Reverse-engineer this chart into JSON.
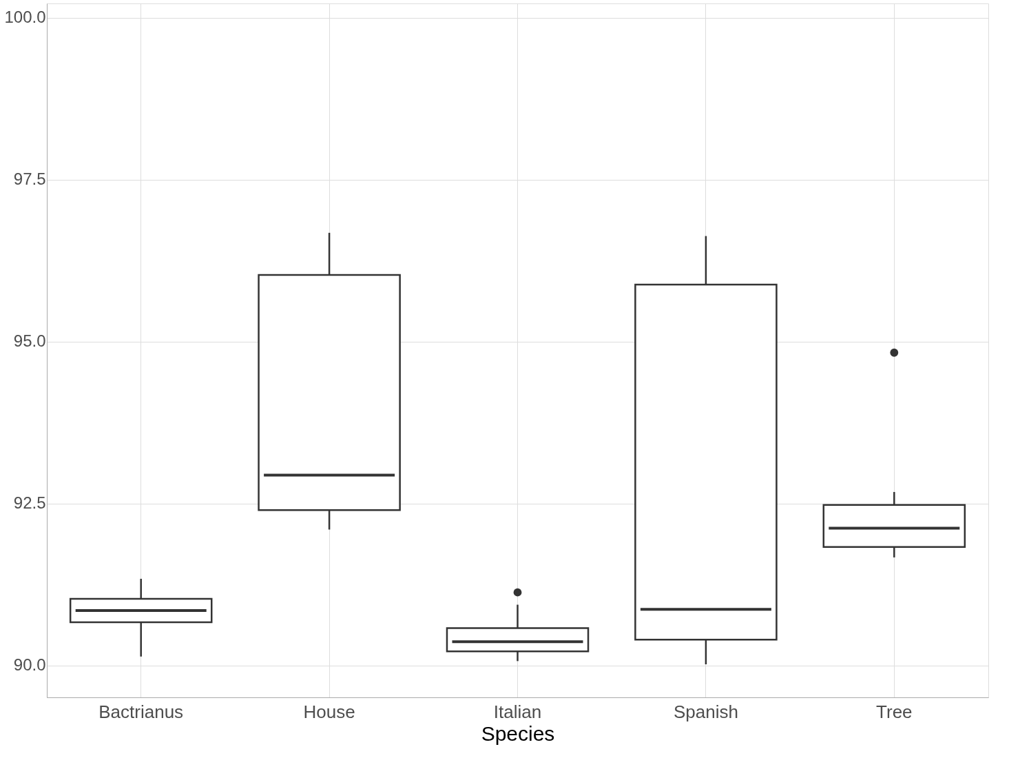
{
  "chart_data": {
    "type": "box",
    "xlabel": "Species",
    "categories": [
      "Bactrianus",
      "House",
      "Italian",
      "Spanish",
      "Tree"
    ],
    "boxes": [
      {
        "low": 90.14,
        "q1": 90.67,
        "median": 90.85,
        "q3": 91.03,
        "high": 91.34
      },
      {
        "low": 92.1,
        "q1": 92.4,
        "median": 92.94,
        "q3": 96.03,
        "high": 96.68
      },
      {
        "low": 90.07,
        "q1": 90.22,
        "median": 90.37,
        "q3": 90.58,
        "high": 90.94,
        "outliers": [
          91.13
        ]
      },
      {
        "low": 90.02,
        "q1": 90.4,
        "median": 90.87,
        "q3": 95.88,
        "high": 96.63
      },
      {
        "low": 91.67,
        "q1": 91.83,
        "median": 92.12,
        "q3": 92.48,
        "high": 92.68,
        "outliers": [
          94.83
        ]
      }
    ],
    "color": "#333333",
    "ylim": [
      89.51,
      100.22
    ],
    "yticks": [
      {
        "value": 90,
        "label": "90.0"
      },
      92.5,
      {
        "value": 95,
        "label": "95.0"
      },
      97.5,
      {
        "value": 100,
        "label": "100.0"
      }
    ],
    "grid": true
  }
}
